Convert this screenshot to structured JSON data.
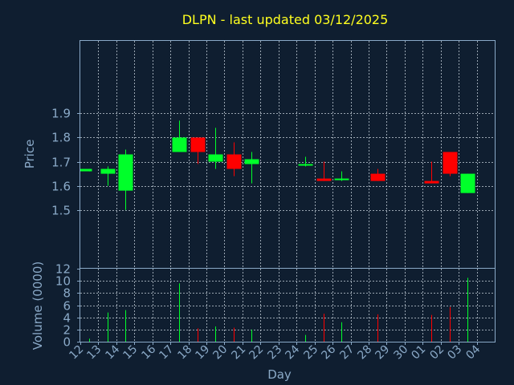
{
  "colors": {
    "background": "#0f1e30",
    "axis": "#8aa9c7",
    "title": "#ffff1f",
    "up": "#00ff2a",
    "down": "#ff0000"
  },
  "chart_data": {
    "type": "candlestick",
    "title": "DLPN - last updated 03/12/2025",
    "xlabel": "Day",
    "price": {
      "ylabel": "Price",
      "ylim": [
        1.26,
        2.2
      ],
      "yticks": [
        "1.5",
        "1.6",
        "1.7",
        "1.8",
        "1.9"
      ],
      "ytick_values": [
        1.5,
        1.6,
        1.7,
        1.8,
        1.9
      ]
    },
    "volume": {
      "ylabel": "Volume (0000)",
      "ylim": [
        0,
        12
      ],
      "yticks": [
        "0",
        "2",
        "4",
        "6",
        "8",
        "10",
        "12"
      ],
      "ytick_values": [
        0,
        2,
        4,
        6,
        8,
        10,
        12
      ]
    },
    "x_labels": [
      "12",
      "13",
      "14",
      "15",
      "16",
      "17",
      "18",
      "19",
      "20",
      "21",
      "22",
      "23",
      "24",
      "25",
      "26",
      "27",
      "28",
      "29",
      "30",
      "01",
      "02",
      "03",
      "04"
    ],
    "candles": [
      {
        "x": 0,
        "open": 1.66,
        "high": 1.67,
        "low": 1.66,
        "close": 1.67,
        "volume": 0.5
      },
      {
        "x": 1,
        "open": 1.65,
        "high": 1.68,
        "low": 1.6,
        "close": 1.67,
        "volume": 4.8
      },
      {
        "x": 2,
        "open": 1.58,
        "high": 1.75,
        "low": 1.5,
        "close": 1.73,
        "volume": 5.2
      },
      {
        "x": 5,
        "open": 1.74,
        "high": 1.87,
        "low": 1.74,
        "close": 1.8,
        "volume": 9.6
      },
      {
        "x": 6,
        "open": 1.8,
        "high": 1.8,
        "low": 1.69,
        "close": 1.74,
        "volume": 2.2
      },
      {
        "x": 7,
        "open": 1.7,
        "high": 1.84,
        "low": 1.67,
        "close": 1.73,
        "volume": 2.5
      },
      {
        "x": 8,
        "open": 1.73,
        "high": 1.78,
        "low": 1.64,
        "close": 1.67,
        "volume": 2.3
      },
      {
        "x": 9,
        "open": 1.69,
        "high": 1.74,
        "low": 1.61,
        "close": 1.71,
        "volume": 2.0
      },
      {
        "x": 12,
        "open": 1.69,
        "high": 1.72,
        "low": 1.68,
        "close": 1.69,
        "volume": 1.1
      },
      {
        "x": 13,
        "open": 1.63,
        "high": 1.7,
        "low": 1.62,
        "close": 1.62,
        "volume": 4.6
      },
      {
        "x": 14,
        "open": 1.63,
        "high": 1.66,
        "low": 1.62,
        "close": 1.63,
        "volume": 3.2
      },
      {
        "x": 16,
        "open": 1.65,
        "high": 1.67,
        "low": 1.62,
        "close": 1.62,
        "volume": 4.5
      },
      {
        "x": 19,
        "open": 1.62,
        "high": 1.7,
        "low": 1.61,
        "close": 1.61,
        "volume": 4.4
      },
      {
        "x": 20,
        "open": 1.74,
        "high": 1.74,
        "low": 1.64,
        "close": 1.65,
        "volume": 5.7
      },
      {
        "x": 21,
        "open": 1.57,
        "high": 1.65,
        "low": 1.57,
        "close": 1.65,
        "volume": 10.5
      }
    ]
  }
}
